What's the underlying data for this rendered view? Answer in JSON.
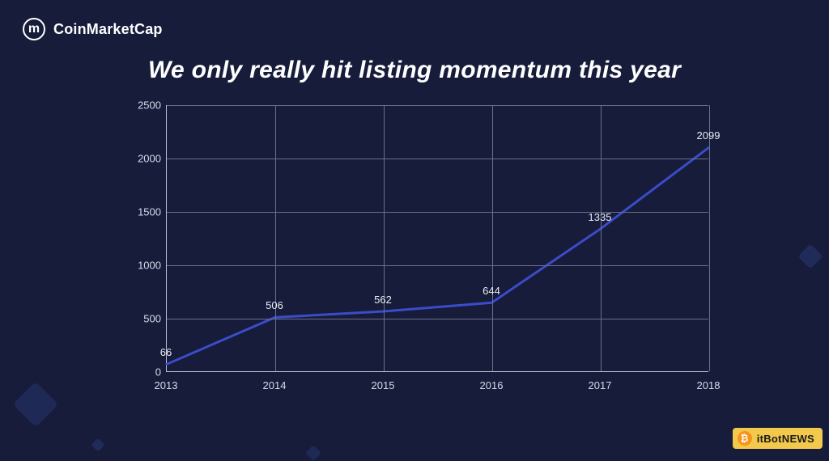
{
  "brand": {
    "name": "CoinMarketCap",
    "logo_glyph": "m"
  },
  "title": "We only really hit listing momentum this year",
  "chart": {
    "type": "line",
    "x_categories": [
      "2013",
      "2014",
      "2015",
      "2016",
      "2017",
      "2018"
    ],
    "values": [
      66,
      506,
      562,
      644,
      1335,
      2099
    ],
    "point_labels": [
      "66",
      "506",
      "562",
      "644",
      "1335",
      "2099"
    ],
    "ylim": [
      0,
      2500
    ],
    "ytick_step": 500,
    "ytick_labels": [
      "0",
      "500",
      "1000",
      "1500",
      "2000",
      "2500"
    ],
    "line_color": "#3b4cca",
    "line_width": 3,
    "background_color": "#161c3a",
    "grid_color": "#6a6f8a",
    "axis_color": "#b9c0d0",
    "label_color": "#d6dbe8",
    "point_label_color": "#e8ecf5",
    "label_fontsize": 13,
    "title_color": "#ffffff",
    "title_fontsize": 30
  },
  "watermark": {
    "text": "itBotNEWS",
    "icon_glyph": "₿",
    "bg_color": "#f2c94c",
    "icon_bg": "#f7931a"
  }
}
